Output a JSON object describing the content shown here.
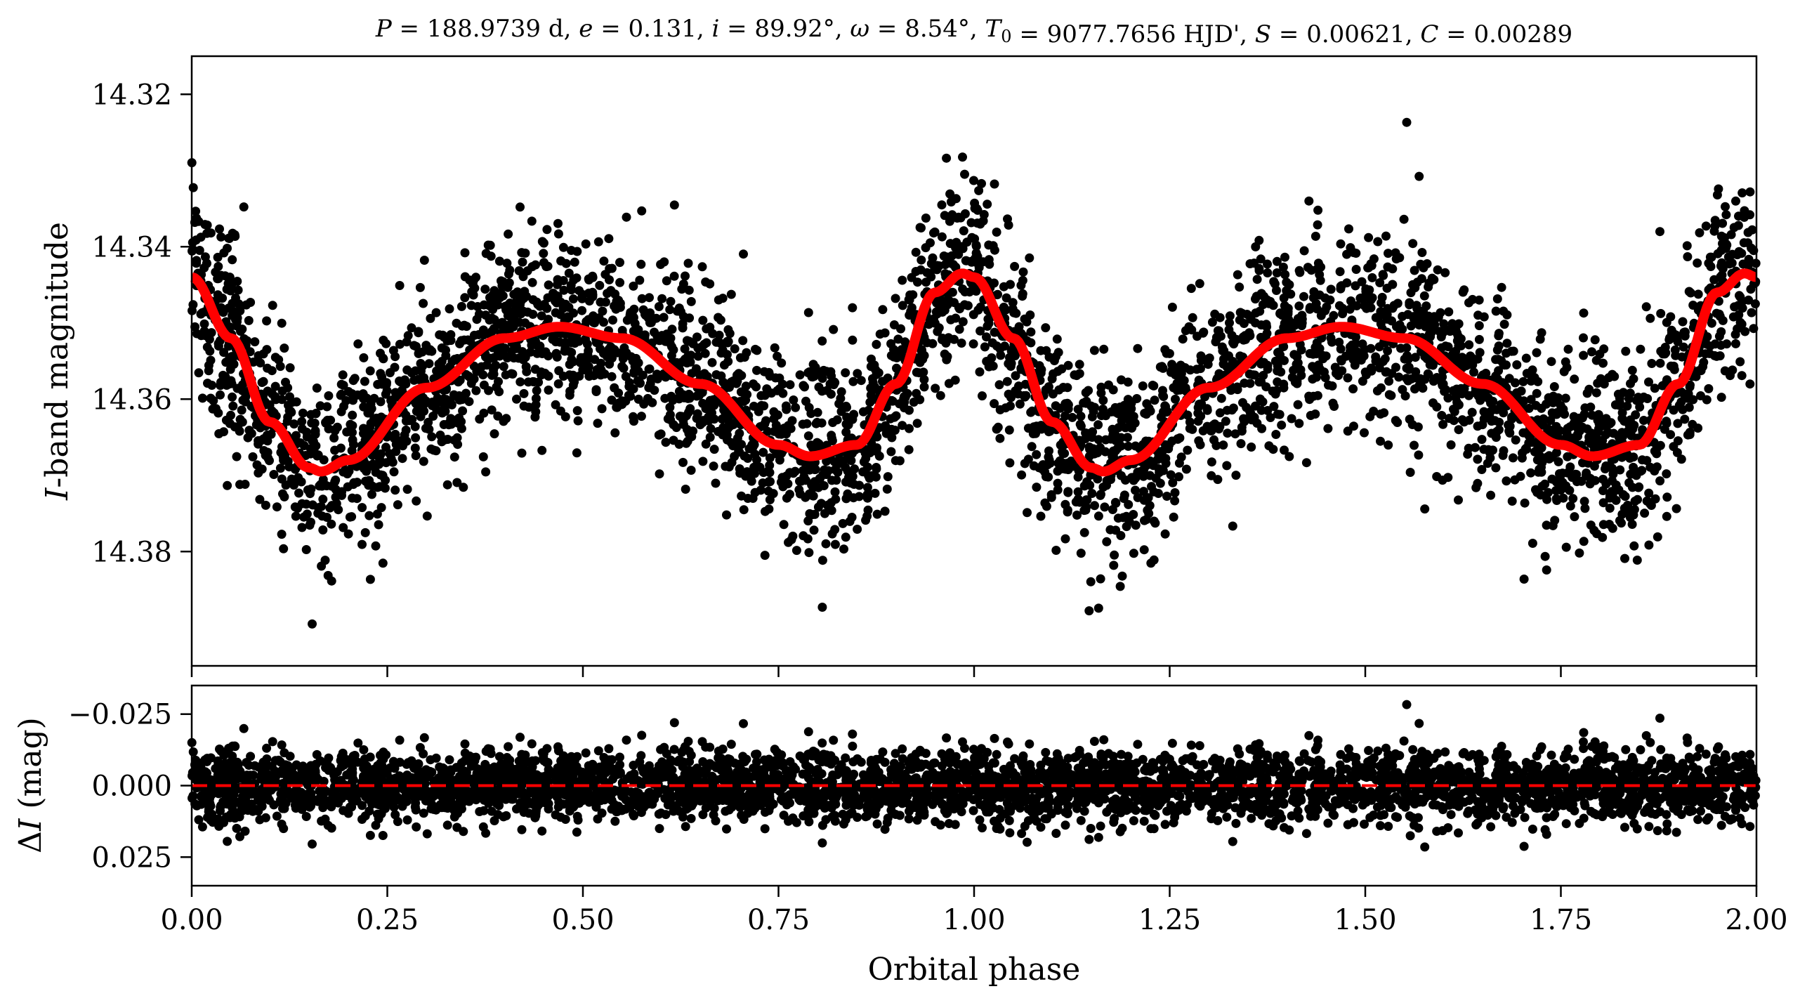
{
  "title": "P = 188.9739 d, e = 0.131, i = 89.92°, ω = 8.54°, T0 = 9077.7656 HJD', S = 0.00621, C = 0.00289",
  "chart_data": [
    {
      "panel": "light-curve",
      "type": "scatter",
      "xlabel": "",
      "ylabel": "I-band magnitude",
      "xlim": [
        0.0,
        2.0
      ],
      "ylim": [
        14.395,
        14.315
      ],
      "y_inverted": true,
      "yticks": [
        14.32,
        14.34,
        14.36,
        14.38
      ],
      "ytick_labels": [
        "14.32",
        "14.34",
        "14.36",
        "14.38"
      ],
      "xticks": [
        0.0,
        0.25,
        0.5,
        0.75,
        1.0,
        1.25,
        1.5,
        1.75,
        2.0
      ],
      "grid": false,
      "point_color": "#000000",
      "model_color": "#ff0000",
      "model_curve": {
        "x": [
          0.0,
          0.05,
          0.1,
          0.15,
          0.165,
          0.2,
          0.3,
          0.4,
          0.47,
          0.55,
          0.65,
          0.75,
          0.79,
          0.85,
          0.9,
          0.95,
          0.985,
          1.0,
          1.05,
          1.1,
          1.15,
          1.165,
          1.2,
          1.3,
          1.4,
          1.47,
          1.55,
          1.65,
          1.75,
          1.79,
          1.85,
          1.9,
          1.95,
          1.985,
          2.0
        ],
        "y": [
          14.344,
          14.352,
          14.363,
          14.369,
          14.3695,
          14.368,
          14.3585,
          14.352,
          14.3505,
          14.352,
          14.358,
          14.366,
          14.3675,
          14.366,
          14.358,
          14.346,
          14.3435,
          14.344,
          14.352,
          14.363,
          14.369,
          14.3695,
          14.368,
          14.3585,
          14.352,
          14.3505,
          14.352,
          14.358,
          14.366,
          14.3675,
          14.366,
          14.358,
          14.346,
          14.3435,
          14.344
        ]
      },
      "scatter_note": "dense photometric points scattered about the model with ~0.006 mag spread",
      "scatter_sigma_mag": 0.006
    },
    {
      "panel": "residuals",
      "type": "scatter",
      "xlabel": "Orbital phase",
      "ylabel": "ΔI (mag)",
      "xlim": [
        0.0,
        2.0
      ],
      "ylim": [
        0.035,
        -0.035
      ],
      "y_inverted": true,
      "yticks": [
        -0.025,
        0.0,
        0.025
      ],
      "ytick_labels": [
        "−0.025",
        "0.000",
        "0.025"
      ],
      "xticks": [
        0.0,
        0.25,
        0.5,
        0.75,
        1.0,
        1.25,
        1.5,
        1.75,
        2.0
      ],
      "xtick_labels": [
        "0.00",
        "0.25",
        "0.50",
        "0.75",
        "1.00",
        "1.25",
        "1.50",
        "1.75",
        "2.00"
      ],
      "zero_line": 0.0,
      "zero_line_style": "dashed",
      "zero_line_color": "#ff0000",
      "point_color": "#000000",
      "scatter_sigma_mag": 0.006
    }
  ]
}
